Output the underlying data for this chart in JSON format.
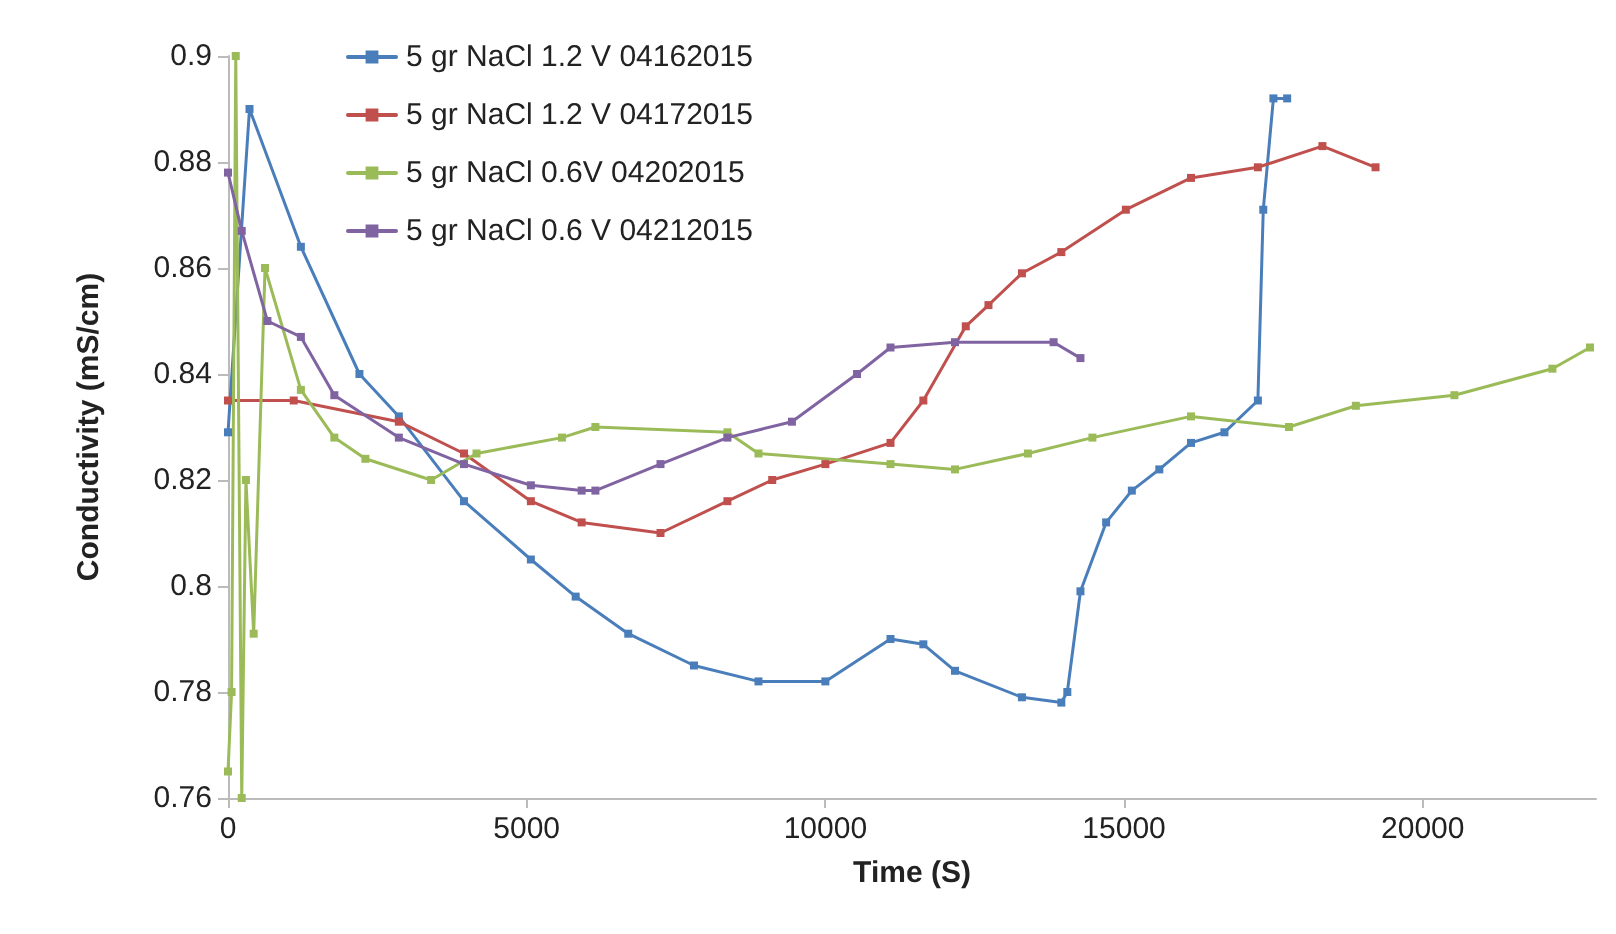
{
  "chart_data": {
    "type": "line",
    "xlabel": "Time (S)",
    "ylabel": "Conductivity (mS/cm)",
    "xlim": [
      0,
      22900
    ],
    "ylim": [
      0.76,
      0.9
    ],
    "xticks": [
      0,
      5000,
      10000,
      15000,
      20000
    ],
    "yticks": [
      0.76,
      0.78,
      0.8,
      0.82,
      0.84,
      0.86,
      0.88,
      0.9
    ],
    "grid": false,
    "legend": "top left",
    "marker": "square",
    "line_style": "solid",
    "series": [
      {
        "name": "5 gr NaCl 1.2 V 04162015",
        "color": "#4a7ebb",
        "x": [
          0,
          360,
          1220,
          2200,
          2860,
          3950,
          5070,
          5820,
          6700,
          7800,
          8880,
          10000,
          11090,
          11640,
          12170,
          13290,
          13950,
          14050,
          14270,
          14700,
          15130,
          15590,
          16120,
          16680,
          17240,
          17330,
          17500,
          17730
        ],
        "values": [
          0.829,
          0.89,
          0.864,
          0.84,
          0.832,
          0.816,
          0.805,
          0.798,
          0.791,
          0.785,
          0.782,
          0.782,
          0.79,
          0.789,
          0.784,
          0.779,
          0.778,
          0.78,
          0.799,
          0.812,
          0.818,
          0.822,
          0.827,
          0.829,
          0.835,
          0.871,
          0.892,
          0.892
        ]
      },
      {
        "name": "5 gr NaCl 1.2 V 04172015",
        "color": "#c0504d",
        "x": [
          0,
          1100,
          2860,
          3950,
          5070,
          5920,
          7240,
          8360,
          9110,
          10000,
          11090,
          11640,
          12350,
          12730,
          13290,
          13950,
          15030,
          16120,
          17240,
          18320,
          19210
        ],
        "values": [
          0.835,
          0.835,
          0.831,
          0.825,
          0.816,
          0.812,
          0.81,
          0.816,
          0.82,
          0.823,
          0.827,
          0.835,
          0.849,
          0.853,
          0.859,
          0.863,
          0.871,
          0.877,
          0.879,
          0.883,
          0.879
        ]
      },
      {
        "name": "5 gr NaCl 0.6V 04202015",
        "color": "#9bbb59",
        "x": [
          0,
          60,
          130,
          230,
          300,
          430,
          620,
          1220,
          1780,
          2300,
          3400,
          4160,
          5590,
          6150,
          8360,
          8880,
          11090,
          12170,
          13390,
          14470,
          16120,
          17760,
          18880,
          20530,
          22170,
          22800
        ],
        "values": [
          0.765,
          0.78,
          0.9,
          0.76,
          0.82,
          0.791,
          0.86,
          0.837,
          0.828,
          0.824,
          0.82,
          0.825,
          0.828,
          0.83,
          0.829,
          0.825,
          0.823,
          0.822,
          0.825,
          0.828,
          0.832,
          0.83,
          0.834,
          0.836,
          0.841,
          0.845
        ]
      },
      {
        "name": "5 gr NaCl 0.6 V 04212015",
        "color": "#8064a2",
        "x": [
          0,
          230,
          660,
          1220,
          1780,
          2860,
          3950,
          5070,
          5920,
          6150,
          7240,
          8360,
          9440,
          10530,
          11090,
          12170,
          13820,
          14270
        ],
        "values": [
          0.878,
          0.867,
          0.85,
          0.847,
          0.836,
          0.828,
          0.823,
          0.819,
          0.818,
          0.818,
          0.823,
          0.828,
          0.831,
          0.84,
          0.845,
          0.846,
          0.846,
          0.843
        ]
      }
    ]
  }
}
